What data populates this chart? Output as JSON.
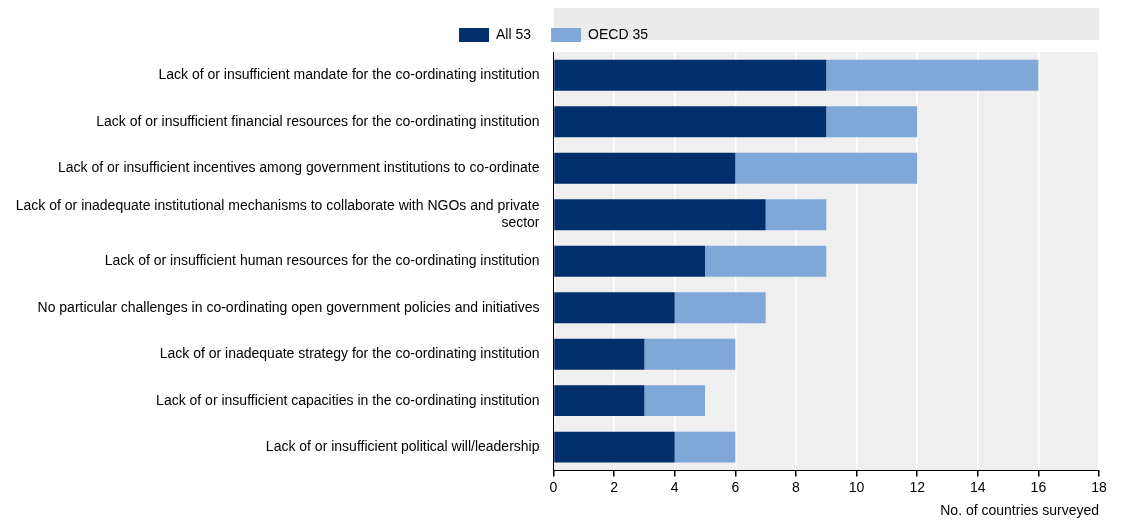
{
  "chart_data": {
    "type": "bar",
    "orientation": "horizontal",
    "stacked": true,
    "xlabel": "No. of countries surveyed",
    "legend": "top",
    "grid": "x",
    "categories": [
      "Lack of or insufficient mandate for the co-ordinating institution",
      "Lack of or insufficient financial resources for the co-ordinating institution",
      "Lack of or insufficient incentives among government institutions to co-ordinate",
      "Lack of or inadequate institutional mechanisms to collaborate with NGOs and private sector",
      "Lack of or insufficient human resources for the co-ordinating institution",
      "No particular challenges in co-ordinating open government policies and initiatives",
      "Lack of or inadequate strategy for the co-ordinating institution",
      "Lack of or insufficient capacities in the co-ordinating institution",
      "Lack of or insufficient political will/leadership"
    ],
    "series": [
      {
        "name": "All 53",
        "color": "#002f6c",
        "values": [
          9,
          9,
          6,
          7,
          5,
          4,
          3,
          3,
          4
        ]
      },
      {
        "name": "OECD 35",
        "color": "#7fa8d9",
        "values": [
          7,
          3,
          6,
          2,
          4,
          3,
          3,
          2,
          2
        ]
      }
    ],
    "xlim": [
      0,
      18
    ],
    "xticks": [
      0,
      2,
      4,
      6,
      8,
      10,
      12,
      14,
      16,
      18
    ]
  }
}
